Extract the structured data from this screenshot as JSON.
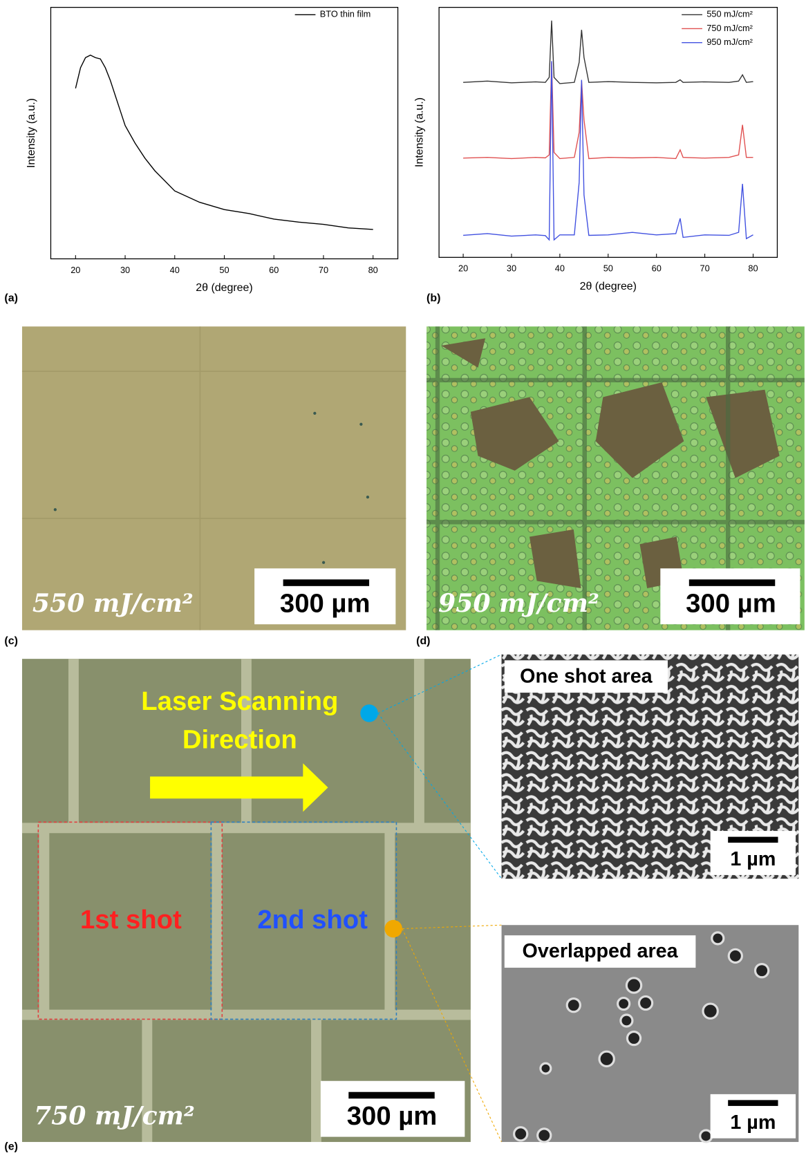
{
  "chart_data": [
    {
      "type": "line",
      "y_label": "Intensity (a.u.)",
      "x_label": "2θ (degree)",
      "x": [
        20,
        21,
        22,
        23,
        24,
        25,
        26,
        27,
        28,
        29,
        30,
        32,
        34,
        36,
        38,
        40,
        45,
        50,
        55,
        60,
        65,
        70,
        75,
        80
      ],
      "series": [
        {
          "name": "BTO thin film",
          "color": "#000000",
          "values": [
            67.8,
            76,
            80,
            81,
            80,
            79.5,
            76,
            71,
            65,
            59,
            53,
            46,
            40,
            35,
            31,
            27,
            22.5,
            19.6,
            18,
            15.8,
            14.6,
            13.7,
            12.3,
            11.7
          ]
        }
      ],
      "xlim": [
        15,
        85
      ],
      "ylim": [
        0,
        100
      ],
      "xticks": [
        20,
        30,
        40,
        50,
        60,
        70,
        80
      ],
      "legend": "upper right"
    },
    {
      "type": "line",
      "y_label": "Intensity (a.u.)",
      "x_label": "2θ (degree)",
      "x": [
        20,
        25,
        30,
        35,
        37,
        37.8,
        38.3,
        38.8,
        40,
        43,
        44,
        44.5,
        45,
        46,
        50,
        55,
        60,
        64,
        64.9,
        65.5,
        70,
        75,
        77,
        77.8,
        78.6,
        80
      ],
      "series": [
        {
          "name": "550 mJ/cm²",
          "color": "#333333",
          "values": [
            70,
            70.5,
            69.8,
            70.2,
            70,
            72,
            94.7,
            72,
            69.5,
            70,
            78,
            91,
            80,
            70,
            70.3,
            70,
            69.8,
            70,
            71,
            70,
            70.2,
            70,
            70.5,
            73,
            70,
            70.3
          ]
        },
        {
          "name": "750 mJ/cm²",
          "color": "#e05050",
          "values": [
            39.7,
            40,
            39.5,
            40,
            39.8,
            41,
            78,
            42,
            39.5,
            40,
            50,
            70.6,
            55,
            39.5,
            40,
            39.8,
            40,
            39.5,
            43,
            40,
            39.7,
            40,
            41,
            53,
            40,
            40
          ]
        },
        {
          "name": "950 mJ/cm²",
          "color": "#4050e0",
          "values": [
            8.8,
            9.5,
            8.5,
            9,
            8.7,
            7,
            78.5,
            7,
            9,
            9,
            30,
            71,
            25,
            8.8,
            9,
            10,
            9,
            9.5,
            15.6,
            8,
            9,
            8.8,
            10,
            29.4,
            7.5,
            9
          ]
        }
      ],
      "xlim": [
        15,
        85
      ],
      "ylim": [
        0,
        100
      ],
      "xticks": [
        20,
        30,
        40,
        50,
        60,
        70,
        80
      ],
      "legend": "upper right"
    }
  ],
  "panel_labels": [
    "(a)",
    "(b)",
    "(c)",
    "(d)",
    "(e)"
  ],
  "micrographs": {
    "c": {
      "fluence": "550 mJ/cm²",
      "scale": "300 µm"
    },
    "d": {
      "fluence": "950 mJ/cm²",
      "scale": "300 µm"
    },
    "e": {
      "fluence": "750 mJ/cm²",
      "scale": "300 µm",
      "direction": [
        "Laser Scanning",
        "Direction"
      ],
      "first": "1st shot",
      "second": "2nd shot"
    },
    "sem_top": {
      "label": "One shot area",
      "scale": "1 µm"
    },
    "sem_bottom": {
      "label": "Overlapped area",
      "scale": "1 µm"
    }
  }
}
